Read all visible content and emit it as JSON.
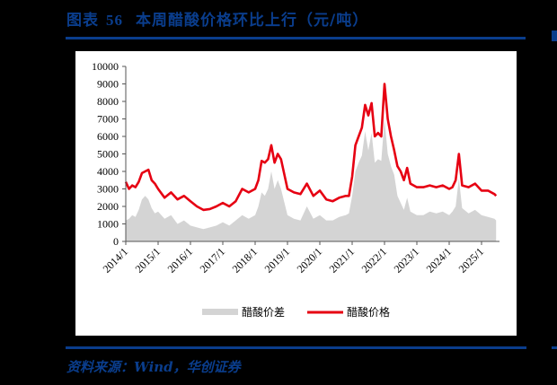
{
  "header": {
    "figure_label": "图表",
    "figure_number": "56",
    "title": "本周醋酸价格环比上行（元/吨）"
  },
  "footer": {
    "source": "资料来源：Wind，华创证券"
  },
  "colors": {
    "brand_blue": "#0a3d8c",
    "price_line": "#e60012",
    "spread_area": "#d4d4d4"
  },
  "chart_data": {
    "type": "area+line",
    "title": "本周醋酸价格环比上行（元/吨）",
    "xlabel": "",
    "ylabel": "",
    "ylim": [
      0,
      10000
    ],
    "yticks": [
      0,
      1000,
      2000,
      3000,
      4000,
      5000,
      6000,
      7000,
      8000,
      9000,
      10000
    ],
    "xticks": [
      "2014/1",
      "2015/1",
      "2016/1",
      "2017/1",
      "2018/1",
      "2019/1",
      "2020/1",
      "2021/1",
      "2022/1",
      "2023/1",
      "2024/1",
      "2025/1"
    ],
    "grid": false,
    "legend_position": "bottom",
    "legend": [
      "醋酸价差",
      "醋酸价格"
    ],
    "x": [
      2014.0,
      2014.1,
      2014.2,
      2014.3,
      2014.4,
      2014.5,
      2014.6,
      2014.7,
      2014.8,
      2014.9,
      2015.0,
      2015.2,
      2015.4,
      2015.6,
      2015.8,
      2016.0,
      2016.2,
      2016.4,
      2016.6,
      2016.8,
      2017.0,
      2017.2,
      2017.4,
      2017.6,
      2017.8,
      2018.0,
      2018.1,
      2018.2,
      2018.3,
      2018.4,
      2018.5,
      2018.6,
      2018.7,
      2018.8,
      2019.0,
      2019.2,
      2019.4,
      2019.6,
      2019.8,
      2020.0,
      2020.2,
      2020.4,
      2020.6,
      2020.8,
      2020.9,
      2021.0,
      2021.1,
      2021.2,
      2021.3,
      2021.4,
      2021.5,
      2021.6,
      2021.7,
      2021.8,
      2021.9,
      2022.0,
      2022.1,
      2022.2,
      2022.3,
      2022.4,
      2022.5,
      2022.6,
      2022.7,
      2022.8,
      2022.9,
      2023.0,
      2023.2,
      2023.4,
      2023.6,
      2023.8,
      2024.0,
      2024.1,
      2024.2,
      2024.3,
      2024.4,
      2024.6,
      2024.8,
      2025.0,
      2025.2,
      2025.4,
      2025.45
    ],
    "series": [
      {
        "name": "醋酸价格",
        "type": "line",
        "values": [
          3400,
          3000,
          3200,
          3100,
          3400,
          3900,
          4000,
          4100,
          3500,
          3300,
          3000,
          2500,
          2800,
          2400,
          2600,
          2300,
          2000,
          1800,
          1850,
          2000,
          2200,
          2000,
          2300,
          3000,
          2800,
          3000,
          3500,
          4600,
          4500,
          4700,
          5500,
          4500,
          5000,
          4700,
          3000,
          2800,
          2700,
          3300,
          2600,
          2900,
          2400,
          2300,
          2500,
          2600,
          2600,
          3700,
          5500,
          6000,
          6500,
          7800,
          7200,
          7900,
          6000,
          6200,
          6000,
          9000,
          7000,
          6000,
          5200,
          4300,
          4000,
          3500,
          4200,
          3300,
          3200,
          3100,
          3100,
          3200,
          3100,
          3200,
          3000,
          3100,
          3500,
          5000,
          3200,
          3100,
          3300,
          2900,
          2900,
          2700,
          2600
        ]
      },
      {
        "name": "醋酸价差",
        "type": "area",
        "values": [
          1200,
          1300,
          1500,
          1400,
          1800,
          2400,
          2600,
          2400,
          1900,
          1600,
          1700,
          1300,
          1500,
          1000,
          1200,
          900,
          800,
          700,
          800,
          900,
          1100,
          900,
          1200,
          1500,
          1300,
          1500,
          2000,
          2800,
          2600,
          3000,
          4000,
          3000,
          3500,
          3000,
          1500,
          1300,
          1200,
          2000,
          1300,
          1500,
          1200,
          1200,
          1400,
          1500,
          1600,
          2600,
          4000,
          4500,
          4900,
          6300,
          5200,
          6200,
          4500,
          4700,
          4600,
          7000,
          5000,
          4300,
          3800,
          2600,
          2200,
          1800,
          2500,
          1700,
          1600,
          1500,
          1500,
          1700,
          1600,
          1700,
          1500,
          1700,
          2000,
          3600,
          1900,
          1600,
          1800,
          1500,
          1400,
          1300,
          1200
        ]
      }
    ]
  }
}
